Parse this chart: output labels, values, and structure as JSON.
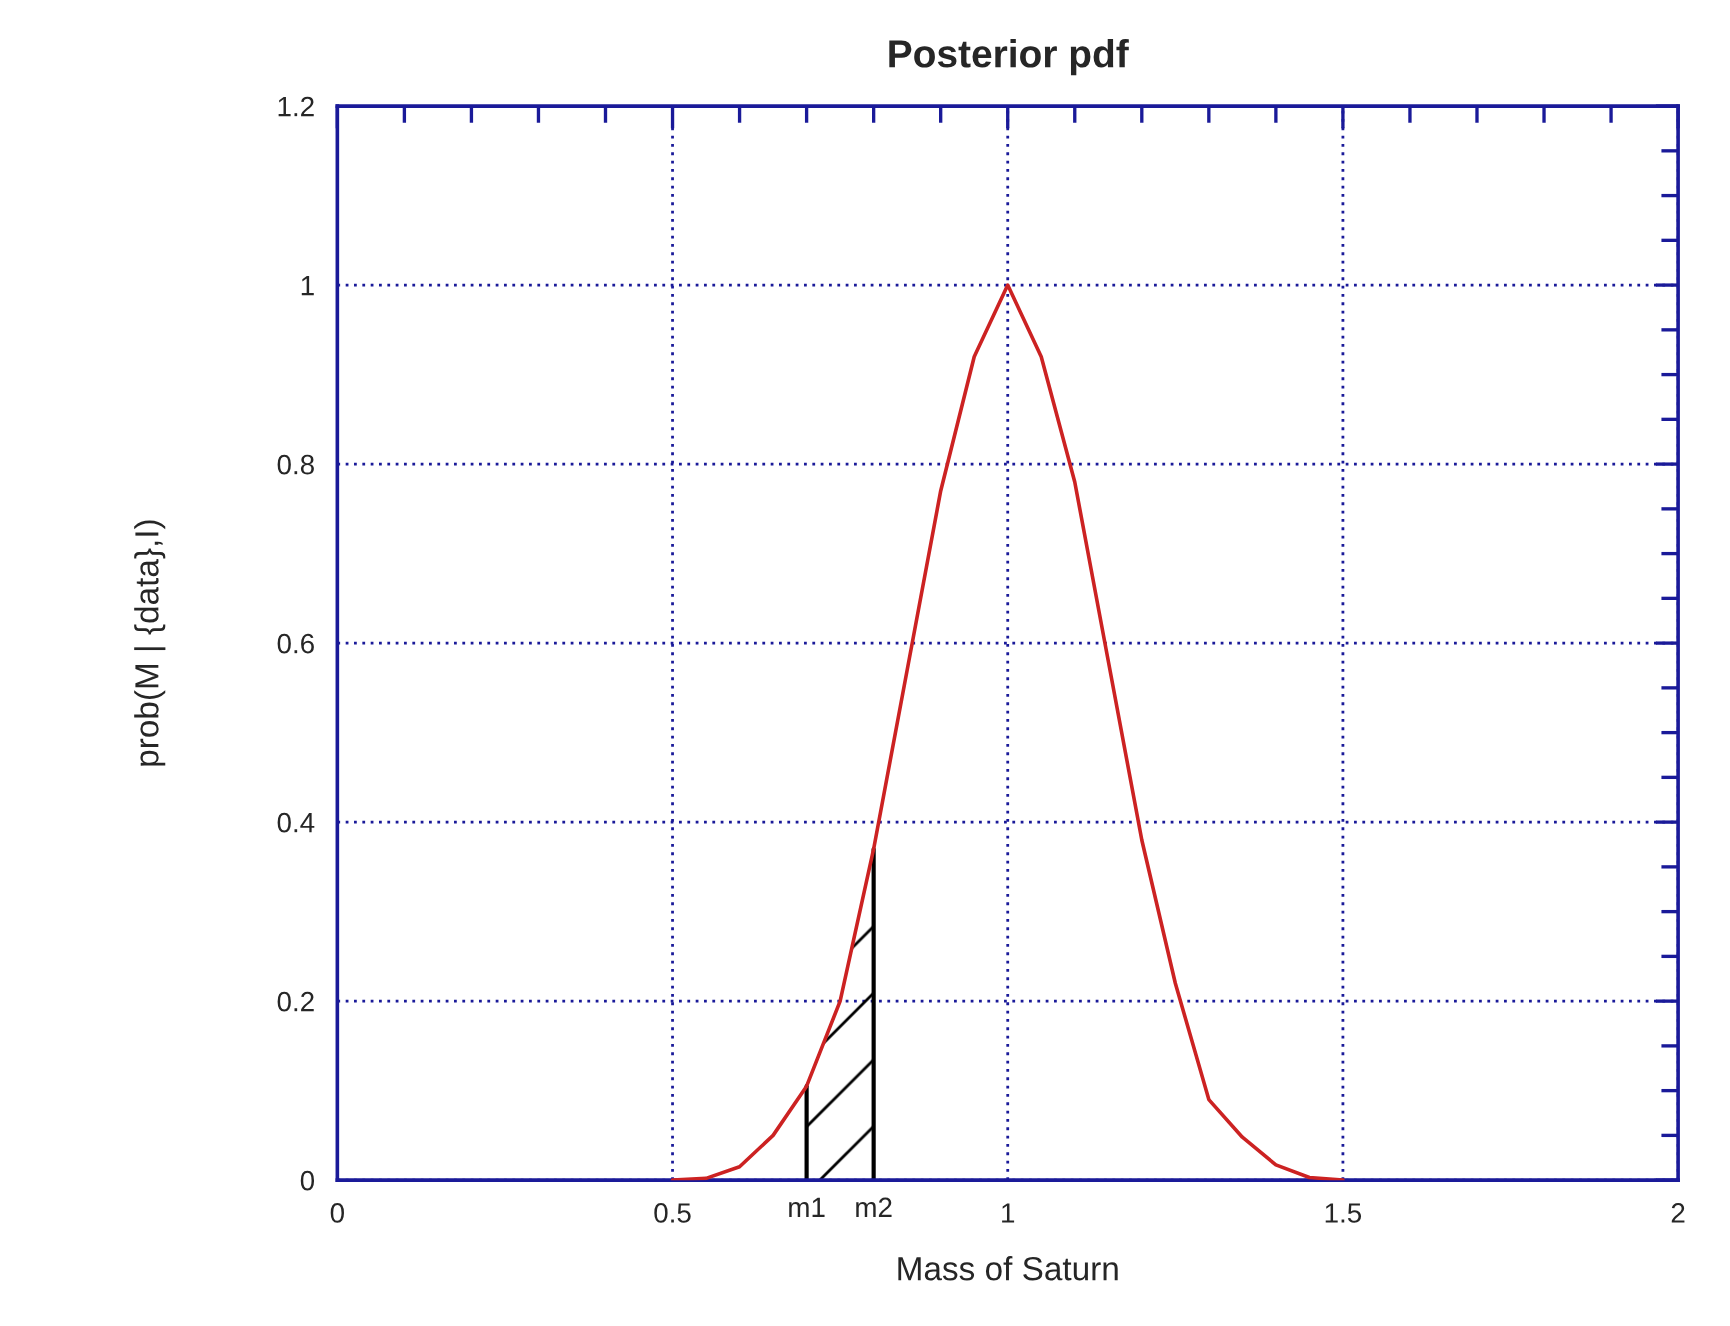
{
  "chart_data": {
    "type": "line",
    "title": "Posterior pdf",
    "xlabel": "Mass of Saturn",
    "ylabel": "prob(M | {data},I)",
    "x": [
      0.5,
      0.55,
      0.6,
      0.65,
      0.7,
      0.75,
      0.8,
      0.85,
      0.9,
      0.95,
      1.0,
      1.05,
      1.1,
      1.15,
      1.2,
      1.25,
      1.3,
      1.35,
      1.4,
      1.45,
      1.5
    ],
    "series": [
      {
        "color": "#cc2222",
        "values": [
          0,
          0.002,
          0.015,
          0.05,
          0.105,
          0.2,
          0.37,
          0.57,
          0.77,
          0.92,
          1.0,
          0.92,
          0.78,
          0.58,
          0.38,
          0.22,
          0.09,
          0.048,
          0.017,
          0.003,
          0
        ]
      },
      {
        "type": "area",
        "color": "#000000",
        "x": [
          0.7,
          0.75,
          0.8
        ],
        "values": [
          0.105,
          0.2,
          0.37
        ]
      }
    ],
    "xlim": [
      0,
      2
    ],
    "xticks": [
      0,
      0.5,
      1,
      1.5,
      2
    ],
    "ylim": [
      0,
      1.2
    ],
    "yticks": [
      0,
      0.2,
      0.4,
      0.6,
      0.8,
      1,
      1.2
    ],
    "ref_lines": [
      {
        "axis": "x",
        "value": 0.7,
        "label": "m1",
        "color": "#000000"
      },
      {
        "axis": "x",
        "value": 0.8,
        "label": "m2",
        "color": "#000000"
      }
    ],
    "grid": true,
    "marker": "none",
    "line_style": "solid",
    "legend": false
  }
}
